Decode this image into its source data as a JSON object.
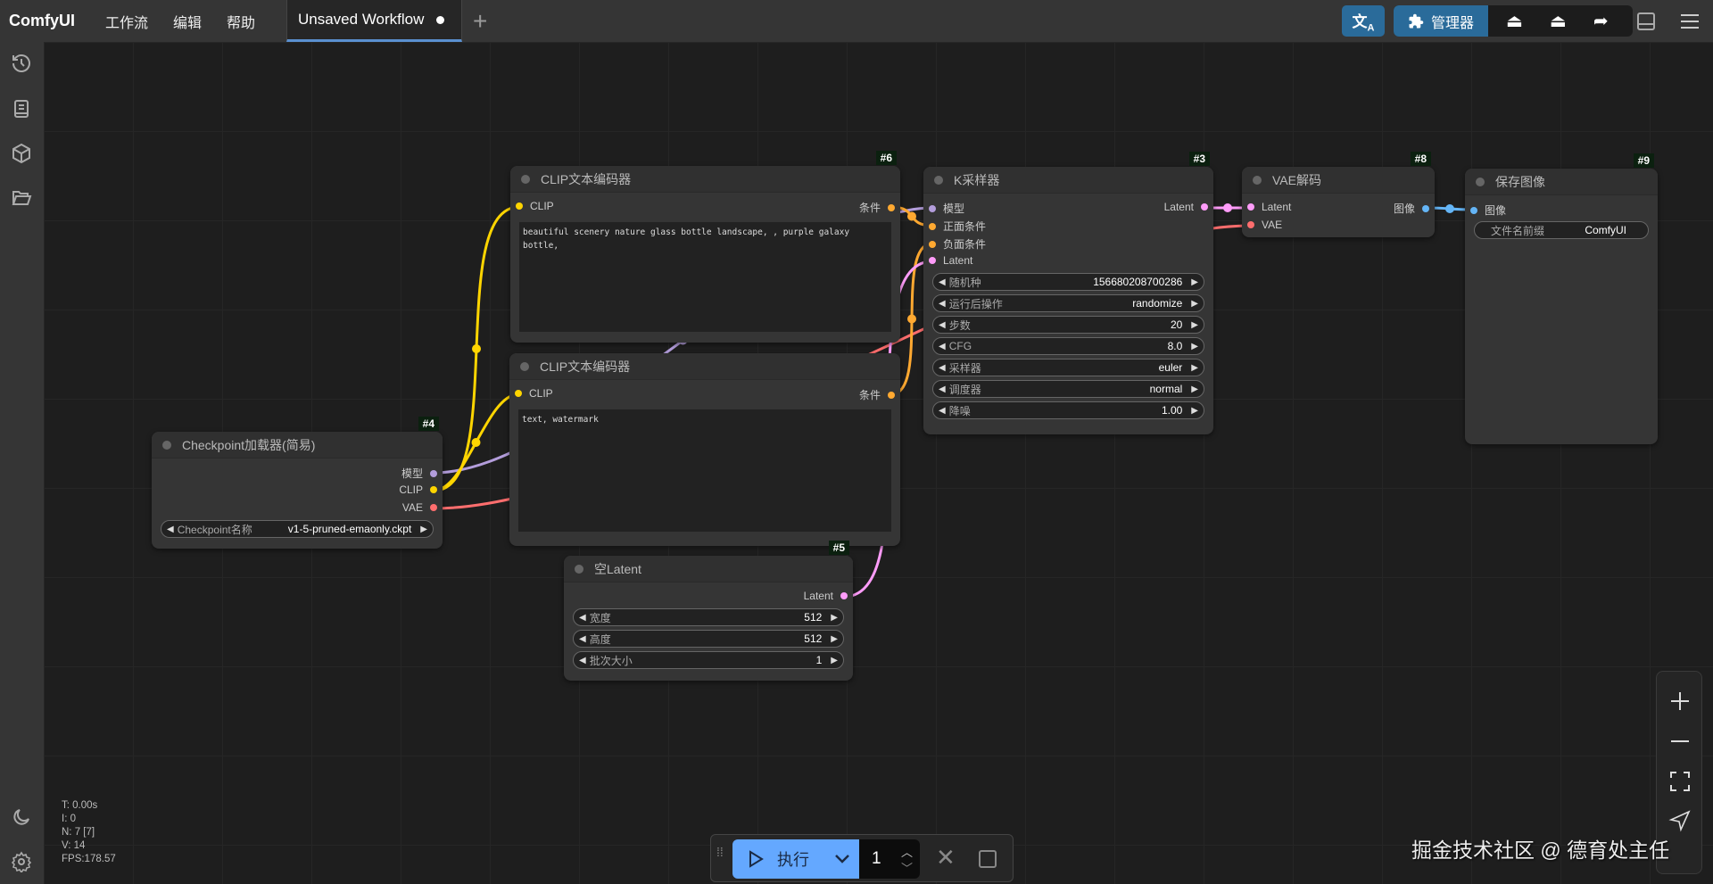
{
  "topbar": {
    "brand": "ComfyUI",
    "menus": [
      "工作流",
      "编辑",
      "帮助"
    ],
    "tab": {
      "label": "Unsaved Workflow",
      "unsaved": true
    },
    "buttons": {
      "translate_icon": "translate-icon",
      "manager_label": "管理器",
      "manager_icon": "puzzle-icon",
      "icons": [
        "vacuum-icon",
        "vacuum-icon",
        "share-icon",
        "panel-icon",
        "menu-icon"
      ]
    },
    "accent": "#2a6b9a"
  },
  "sidebar": {
    "icons": [
      "history-icon",
      "library-icon",
      "cube-icon",
      "folder-icon",
      "moon-icon",
      "gear-icon"
    ]
  },
  "type_colors": {
    "MODEL": "#b39ddb",
    "CLIP": "#ffd500",
    "VAE": "#ff6e6e",
    "CONDITIONING": "#ffa931",
    "LATENT": "#ff9cf9",
    "IMAGE": "#64b5f6"
  },
  "nodes": [
    {
      "id": "4",
      "badge": "#4",
      "title": "Checkpoint加载器(简易)",
      "inputs": [],
      "outputs": [
        {
          "label": "模型",
          "type": "MODEL"
        },
        {
          "label": "CLIP",
          "type": "CLIP"
        },
        {
          "label": "VAE",
          "type": "VAE"
        }
      ],
      "widgets": [
        {
          "label": "Checkpoint名称",
          "value": "v1-5-pruned-emaonly.ckpt"
        }
      ]
    },
    {
      "id": "6",
      "badge": "#6",
      "title": "CLIP文本编码器",
      "inputs": [
        {
          "label": "CLIP",
          "type": "CLIP"
        }
      ],
      "outputs": [
        {
          "label": "条件",
          "type": "CONDITIONING"
        }
      ],
      "widgets": [],
      "text": "beautiful scenery nature glass bottle landscape, , purple galaxy bottle,"
    },
    {
      "id": "7",
      "badge": "",
      "title": "CLIP文本编码器",
      "inputs": [
        {
          "label": "CLIP",
          "type": "CLIP"
        }
      ],
      "outputs": [
        {
          "label": "条件",
          "type": "CONDITIONING"
        }
      ],
      "widgets": [],
      "text": "text, watermark"
    },
    {
      "id": "5",
      "badge": "#5",
      "title": "空Latent",
      "inputs": [],
      "outputs": [
        {
          "label": "Latent",
          "type": "LATENT"
        }
      ],
      "widgets": [
        {
          "label": "宽度",
          "value": "512"
        },
        {
          "label": "高度",
          "value": "512"
        },
        {
          "label": "批次大小",
          "value": "1"
        }
      ]
    },
    {
      "id": "3",
      "badge": "#3",
      "title": "K采样器",
      "inputs": [
        {
          "label": "模型",
          "type": "MODEL"
        },
        {
          "label": "正面条件",
          "type": "CONDITIONING"
        },
        {
          "label": "负面条件",
          "type": "CONDITIONING"
        },
        {
          "label": "Latent",
          "type": "LATENT"
        }
      ],
      "outputs": [
        {
          "label": "Latent",
          "type": "LATENT"
        }
      ],
      "widgets": [
        {
          "label": "随机种",
          "value": "156680208700286"
        },
        {
          "label": "运行后操作",
          "value": "randomize"
        },
        {
          "label": "步数",
          "value": "20"
        },
        {
          "label": "CFG",
          "value": "8.0"
        },
        {
          "label": "采样器",
          "value": "euler"
        },
        {
          "label": "调度器",
          "value": "normal"
        },
        {
          "label": "降噪",
          "value": "1.00"
        }
      ]
    },
    {
      "id": "8",
      "badge": "#8",
      "title": "VAE解码",
      "inputs": [
        {
          "label": "Latent",
          "type": "LATENT"
        },
        {
          "label": "VAE",
          "type": "VAE"
        }
      ],
      "outputs": [
        {
          "label": "图像",
          "type": "IMAGE"
        }
      ],
      "widgets": []
    },
    {
      "id": "9",
      "badge": "#9",
      "title": "保存图像",
      "inputs": [
        {
          "label": "图像",
          "type": "IMAGE"
        }
      ],
      "outputs": [],
      "widgets": [
        {
          "label": "文件名前缀",
          "value": "ComfyUI",
          "noarrows": true
        }
      ]
    }
  ],
  "links": [
    {
      "from": "4",
      "out": 0,
      "to": "3",
      "in": 0,
      "type": "MODEL"
    },
    {
      "from": "4",
      "out": 1,
      "to": "6",
      "in": 0,
      "type": "CLIP"
    },
    {
      "from": "4",
      "out": 1,
      "to": "7",
      "in": 0,
      "type": "CLIP"
    },
    {
      "from": "4",
      "out": 2,
      "to": "8",
      "in": 1,
      "type": "VAE"
    },
    {
      "from": "6",
      "out": 0,
      "to": "3",
      "in": 1,
      "type": "CONDITIONING"
    },
    {
      "from": "7",
      "out": 0,
      "to": "3",
      "in": 2,
      "type": "CONDITIONING"
    },
    {
      "from": "5",
      "out": 0,
      "to": "3",
      "in": 3,
      "type": "LATENT"
    },
    {
      "from": "3",
      "out": 0,
      "to": "8",
      "in": 0,
      "type": "LATENT"
    },
    {
      "from": "8",
      "out": 0,
      "to": "9",
      "in": 0,
      "type": "IMAGE"
    }
  ],
  "stats": [
    "T: 0.00s",
    "I: 0",
    "N: 7 [7]",
    "V: 14",
    "FPS:178.57"
  ],
  "queue": {
    "run_label": "执行",
    "count": "1",
    "run_color": "#64a8ff"
  },
  "zoom_controls": [
    "zoom-in-icon",
    "zoom-out-icon",
    "fit-view-icon",
    "pointer-icon"
  ],
  "watermark": "掘金技术社区 @ 德育处主任"
}
